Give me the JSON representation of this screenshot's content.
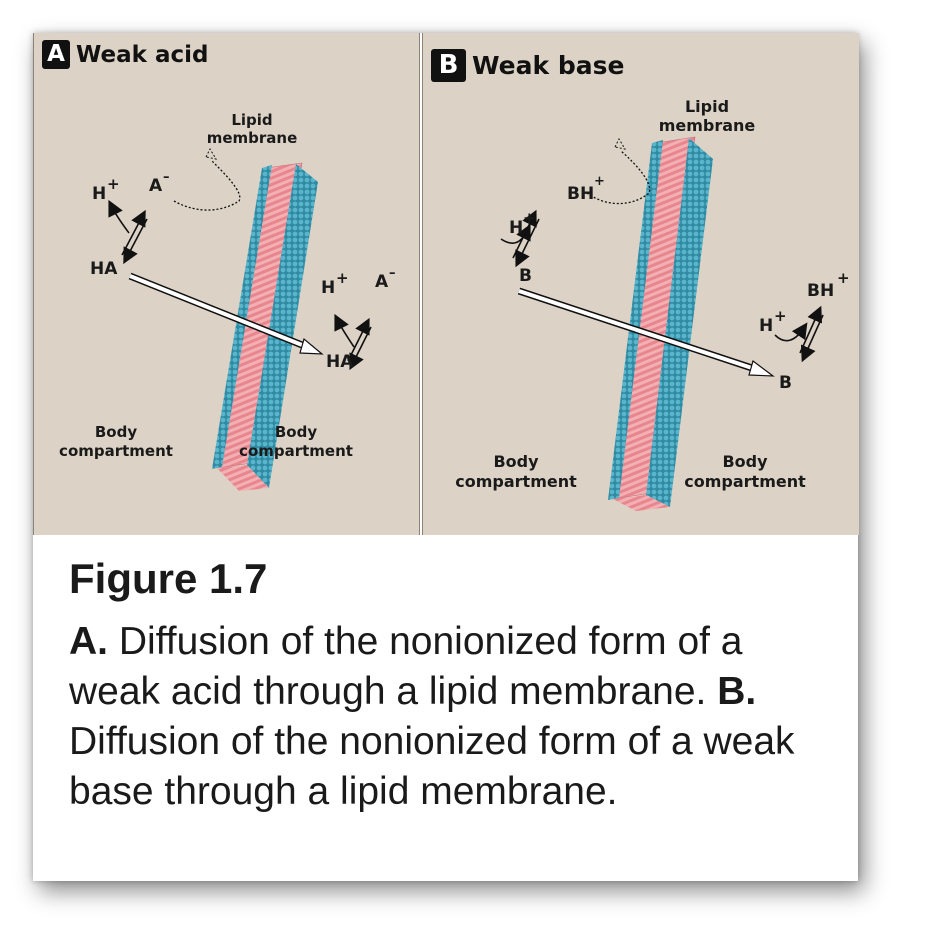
{
  "panel_a": {
    "badge": "A",
    "title": "Weak acid",
    "labels": {
      "membrane_line1": "Lipid",
      "membrane_line2": "membrane",
      "h_left": "H",
      "a_left": "A",
      "ha_left": "HA",
      "h_right": "H",
      "a_right": "A",
      "ha_right": "HA",
      "body_left_line1": "Body",
      "body_left_line2": "compartment",
      "body_right_line1": "Body",
      "body_right_line2": "compartment",
      "plus": "+",
      "minus": "–"
    }
  },
  "panel_b": {
    "badge": "B",
    "title": "Weak base",
    "labels": {
      "membrane_line1": "Lipid",
      "membrane_line2": "membrane",
      "bh_left": "BH",
      "h_left": "H",
      "b_left": "B",
      "bh_right": "BH",
      "h_right": "H",
      "b_right": "B",
      "body_left_line1": "Body",
      "body_left_line2": "compartment",
      "body_right_line1": "Body",
      "body_right_line2": "compartment",
      "plus": "+"
    }
  },
  "caption": {
    "title": "Figure 1.7",
    "a_marker": "A.",
    "a_text": " Diffusion of the nonionized form of a weak acid through a lipid membrane. ",
    "b_marker": "B.",
    "b_text": " Diffusion of the nonionized form of a weak base through a lipid membrane."
  },
  "colors": {
    "panel_bg": "#dcd3c6",
    "membrane_blue": "#3f9db4",
    "membrane_pink": "#e8868e",
    "arrow_fill": "#ffffff"
  }
}
